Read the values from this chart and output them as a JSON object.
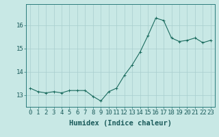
{
  "x": [
    0,
    1,
    2,
    3,
    4,
    5,
    6,
    7,
    8,
    9,
    10,
    11,
    12,
    13,
    14,
    15,
    16,
    17,
    18,
    19,
    20,
    21,
    22,
    23
  ],
  "y": [
    13.3,
    13.15,
    13.1,
    13.15,
    13.1,
    13.2,
    13.2,
    13.2,
    12.95,
    12.75,
    13.15,
    13.3,
    13.85,
    14.3,
    14.85,
    15.55,
    16.3,
    16.2,
    15.45,
    15.3,
    15.35,
    15.45,
    15.25,
    15.35
  ],
  "line_color": "#1a6b5e",
  "marker_color": "#1a6b5e",
  "bg_color": "#c8e8e5",
  "grid_color": "#a8cece",
  "xlabel": "Humidex (Indice chaleur)",
  "yticks": [
    13,
    14,
    15,
    16
  ],
  "xticks": [
    0,
    1,
    2,
    3,
    4,
    5,
    6,
    7,
    8,
    9,
    10,
    11,
    12,
    13,
    14,
    15,
    16,
    17,
    18,
    19,
    20,
    21,
    22,
    23
  ],
  "ylim": [
    12.5,
    16.9
  ],
  "xlim": [
    -0.5,
    23.5
  ],
  "xlabel_fontsize": 7.5,
  "tick_fontsize": 6.5,
  "linewidth": 0.8,
  "markersize": 2.5,
  "markeredgewidth": 0.7
}
